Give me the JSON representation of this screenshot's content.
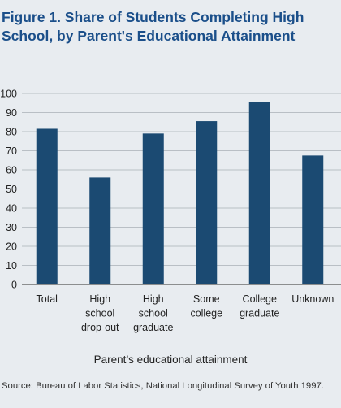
{
  "chart_data": {
    "type": "bar",
    "title": "Figure 1. Share of Students Completing High School, by Parent's Educational Attainment",
    "xlabel": "Parent’s educational attainment",
    "ylabel": "",
    "ylim": [
      0,
      100
    ],
    "yticks": [
      0,
      10,
      20,
      30,
      40,
      50,
      60,
      70,
      80,
      90,
      100
    ],
    "grid": true,
    "categories": [
      [
        "Total"
      ],
      [
        "High",
        "school",
        "drop-out"
      ],
      [
        "High",
        "school",
        "graduate"
      ],
      [
        "Some",
        "college"
      ],
      [
        "College",
        "graduate"
      ],
      [
        "Unknown"
      ]
    ],
    "values": [
      81.5,
      56,
      79,
      85.5,
      95.5,
      67.5
    ],
    "bar_color": "#1b4a72",
    "source": "Source: Bureau of Labor Statistics, National Longitudinal Survey of Youth 1997."
  }
}
